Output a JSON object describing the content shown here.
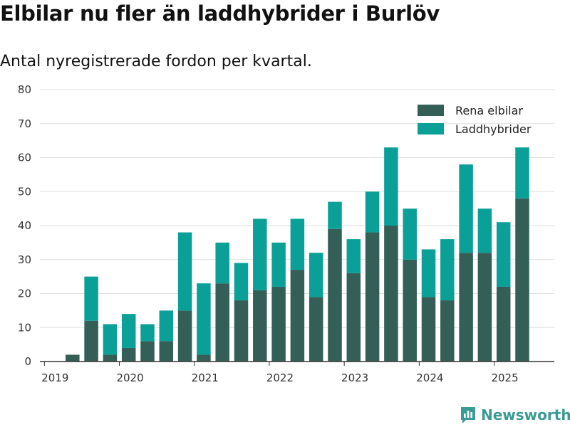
{
  "title": "Elbilar nu fler än laddhybrider i Burlöv",
  "subtitle": "Antal nyregistrerade fordon per kvartal.",
  "brand": {
    "name": "Newsworthy",
    "icon": "newsworthy-logo-icon",
    "color": "#3a9a96"
  },
  "chart_data": {
    "type": "bar",
    "stacked": true,
    "x_unit": "quarter",
    "categories": [
      "2019-Q1",
      "2019-Q2",
      "2019-Q3",
      "2019-Q4",
      "2020-Q1",
      "2020-Q2",
      "2020-Q3",
      "2020-Q4",
      "2021-Q1",
      "2021-Q2",
      "2021-Q3",
      "2021-Q4",
      "2022-Q1",
      "2022-Q2",
      "2022-Q3",
      "2022-Q4",
      "2023-Q1",
      "2023-Q2",
      "2023-Q3",
      "2023-Q4",
      "2024-Q1",
      "2024-Q2",
      "2024-Q3",
      "2024-Q4",
      "2025-Q1",
      "2025-Q2"
    ],
    "series": [
      {
        "name": "Rena elbilar",
        "color": "#335f57",
        "values": [
          0,
          2,
          12,
          2,
          4,
          6,
          6,
          15,
          2,
          23,
          18,
          21,
          22,
          27,
          19,
          39,
          26,
          38,
          40,
          30,
          19,
          18,
          32,
          32,
          22,
          48
        ]
      },
      {
        "name": "Laddhybrider",
        "color": "#0aa098",
        "values": [
          0,
          0,
          13,
          9,
          10,
          5,
          9,
          23,
          21,
          12,
          11,
          21,
          13,
          15,
          13,
          8,
          10,
          12,
          23,
          15,
          14,
          18,
          26,
          13,
          19,
          15
        ]
      }
    ],
    "x_ticks": [
      "2019",
      "2020",
      "2021",
      "2022",
      "2023",
      "2024",
      "2025"
    ],
    "y_ticks": [
      0,
      10,
      20,
      30,
      40,
      50,
      60,
      70,
      80
    ],
    "ylim": [
      0,
      80
    ],
    "grid": true,
    "legend_position": "top-right"
  }
}
